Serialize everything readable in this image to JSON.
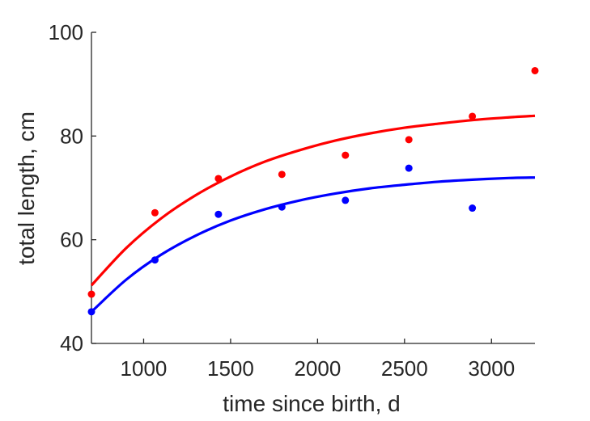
{
  "chart_data": {
    "type": "scatter",
    "title": "",
    "xlabel": "time since birth, d",
    "ylabel": "total length, cm",
    "xlim": [
      700,
      3250
    ],
    "ylim": [
      40,
      100
    ],
    "xticks": [
      1000,
      1500,
      2000,
      2500,
      3000
    ],
    "yticks": [
      40,
      60,
      80,
      100
    ],
    "grid": false,
    "legend": "none",
    "series": [
      {
        "color": "#ff0000",
        "points": [
          {
            "x": 700,
            "y": 49.5
          },
          {
            "x": 1065,
            "y": 65.2
          },
          {
            "x": 1430,
            "y": 71.8
          },
          {
            "x": 1795,
            "y": 72.6
          },
          {
            "x": 2160,
            "y": 76.3
          },
          {
            "x": 2525,
            "y": 79.3
          },
          {
            "x": 2890,
            "y": 83.8
          },
          {
            "x": 3250,
            "y": 92.6
          }
        ],
        "fit": [
          {
            "x": 700,
            "y": 51.2
          },
          {
            "x": 900,
            "y": 58.4
          },
          {
            "x": 1100,
            "y": 64.1
          },
          {
            "x": 1300,
            "y": 68.6
          },
          {
            "x": 1500,
            "y": 72.2
          },
          {
            "x": 1700,
            "y": 75.1
          },
          {
            "x": 1900,
            "y": 77.3
          },
          {
            "x": 2100,
            "y": 79.1
          },
          {
            "x": 2300,
            "y": 80.5
          },
          {
            "x": 2500,
            "y": 81.6
          },
          {
            "x": 2700,
            "y": 82.4
          },
          {
            "x": 2900,
            "y": 83.1
          },
          {
            "x": 3100,
            "y": 83.6
          },
          {
            "x": 3250,
            "y": 83.9
          }
        ]
      },
      {
        "color": "#0000ff",
        "points": [
          {
            "x": 700,
            "y": 46.1
          },
          {
            "x": 1065,
            "y": 56.1
          },
          {
            "x": 1430,
            "y": 64.9
          },
          {
            "x": 1795,
            "y": 66.3
          },
          {
            "x": 2160,
            "y": 67.6
          },
          {
            "x": 2525,
            "y": 73.8
          },
          {
            "x": 2890,
            "y": 66.1
          }
        ],
        "fit": [
          {
            "x": 700,
            "y": 46.1
          },
          {
            "x": 900,
            "y": 52.3
          },
          {
            "x": 1100,
            "y": 57.1
          },
          {
            "x": 1300,
            "y": 60.8
          },
          {
            "x": 1500,
            "y": 63.7
          },
          {
            "x": 1700,
            "y": 65.9
          },
          {
            "x": 1900,
            "y": 67.6
          },
          {
            "x": 2100,
            "y": 68.9
          },
          {
            "x": 2300,
            "y": 69.9
          },
          {
            "x": 2500,
            "y": 70.6
          },
          {
            "x": 2700,
            "y": 71.2
          },
          {
            "x": 2900,
            "y": 71.6
          },
          {
            "x": 3100,
            "y": 71.9
          },
          {
            "x": 3250,
            "y": 72.0
          }
        ]
      }
    ]
  }
}
